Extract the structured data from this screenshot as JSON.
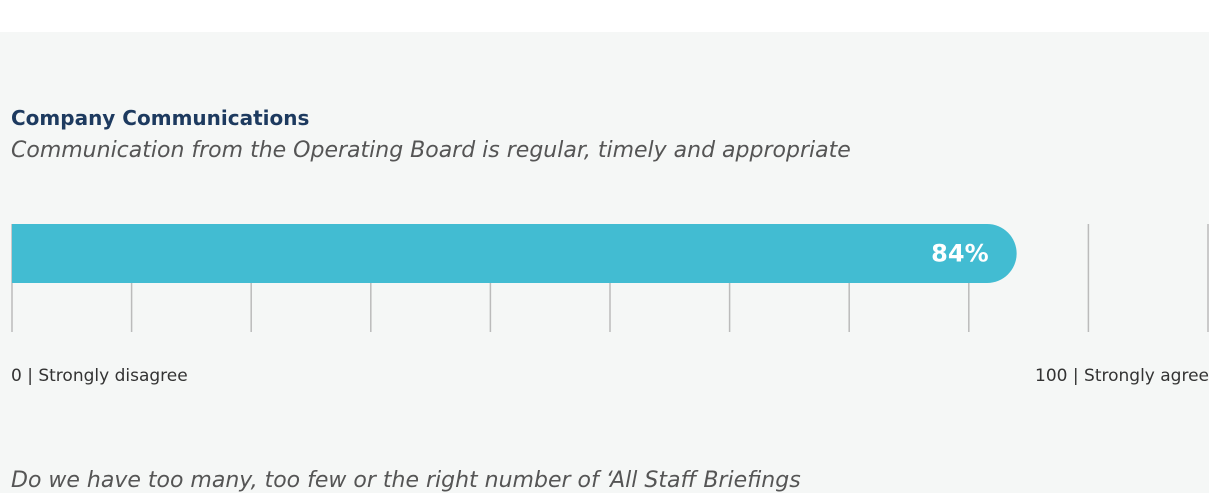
{
  "section": {
    "title": "Company Communications",
    "question": "Communication from the Operating Board is regular, timely and appropriate",
    "bar": {
      "value": 84,
      "value_label": "84%",
      "color": "#42bcd2",
      "xlim": [
        0,
        100
      ],
      "xticks": [
        0,
        10,
        20,
        30,
        40,
        50,
        60,
        70,
        80,
        90,
        100
      ],
      "min_label": "0 | Strongly disagree",
      "max_label": "100 | Strongly agree"
    }
  },
  "next_question": "Do we have too many, too few or the right number of ‘All Staff Briefings"
}
